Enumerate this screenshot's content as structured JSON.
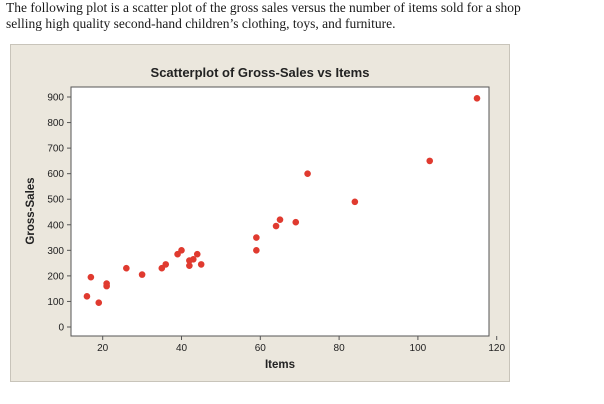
{
  "intro": {
    "line1": "The following plot is a scatter plot of the gross sales versus the number of items sold for a shop",
    "line2": "selling high quality second-hand children’s clothing, toys, and furniture."
  },
  "colors": {
    "frame_background": "#ebe7dd",
    "plot_background": "#ffffff",
    "point": "#e03a2f",
    "text": "#222222"
  },
  "chart_data": {
    "type": "scatter",
    "title": "Scatterplot of Gross-Sales vs Items",
    "xlabel": "Items",
    "ylabel": "Gross-Sales",
    "xlim": [
      10,
      120
    ],
    "ylim": [
      0,
      900
    ],
    "x_ticks": [
      20,
      40,
      60,
      80,
      100,
      120
    ],
    "y_ticks": [
      0,
      100,
      200,
      300,
      400,
      500,
      600,
      700,
      800,
      900
    ],
    "x_tick_labels": [
      "20",
      "40",
      "60",
      "80",
      "100",
      "120"
    ],
    "y_tick_labels": [
      "0",
      "100",
      "200",
      "300",
      "400",
      "500",
      "600",
      "700",
      "800",
      "900"
    ],
    "grid": false,
    "legend": "none",
    "points": [
      {
        "x": 16,
        "y": 120
      },
      {
        "x": 17,
        "y": 195
      },
      {
        "x": 19,
        "y": 95
      },
      {
        "x": 21,
        "y": 160
      },
      {
        "x": 21,
        "y": 170
      },
      {
        "x": 26,
        "y": 230
      },
      {
        "x": 30,
        "y": 205
      },
      {
        "x": 35,
        "y": 230
      },
      {
        "x": 36,
        "y": 245
      },
      {
        "x": 39,
        "y": 285
      },
      {
        "x": 40,
        "y": 300
      },
      {
        "x": 42,
        "y": 240
      },
      {
        "x": 42,
        "y": 260
      },
      {
        "x": 43,
        "y": 265
      },
      {
        "x": 44,
        "y": 285
      },
      {
        "x": 45,
        "y": 245
      },
      {
        "x": 59,
        "y": 300
      },
      {
        "x": 59,
        "y": 350
      },
      {
        "x": 64,
        "y": 395
      },
      {
        "x": 65,
        "y": 420
      },
      {
        "x": 69,
        "y": 410
      },
      {
        "x": 72,
        "y": 600
      },
      {
        "x": 84,
        "y": 490
      },
      {
        "x": 103,
        "y": 650
      },
      {
        "x": 115,
        "y": 895
      }
    ]
  }
}
